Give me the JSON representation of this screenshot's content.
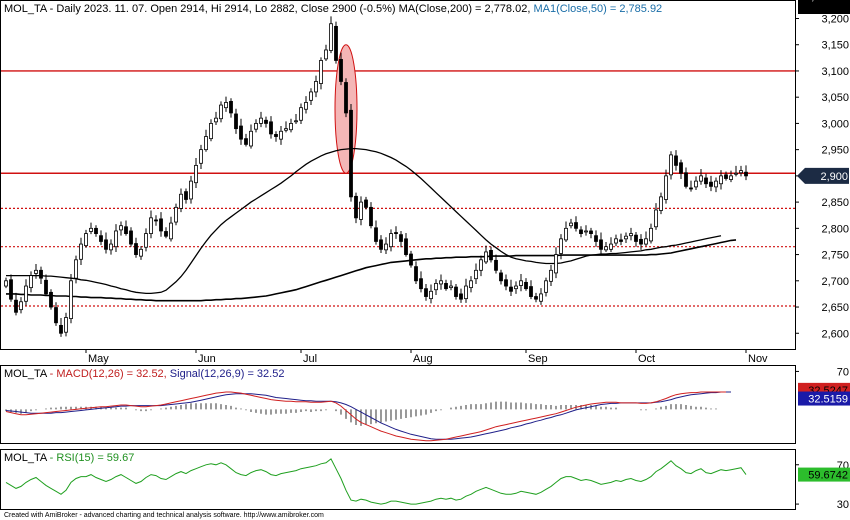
{
  "header": {
    "main": {
      "symbol": "MOL_TA",
      "info": " - Daily 2023. 11. 07. Open 2914, Hi 2914, Lo 2882, Close 2900 (-0.5%) ",
      "ma200": "MA(Close,200) = 2,778.02,",
      "ma50": " MA1(Close,50) = 2,785.92"
    },
    "macd": {
      "symbol": "MOL_TA",
      "macd": " - MACD(12,26) = 32.52,",
      "signal": " Signal(12,26,9) = 32.52"
    },
    "rsi": {
      "symbol": "MOL_TA",
      "rsi": " - RSI(15) = 59.67"
    }
  },
  "footer": "Created with AmiBroker - advanced charting and technical analysis software. http://www.amibroker.com",
  "colors": {
    "bull": "#ffffff",
    "bear": "#000000",
    "ma50": "#000000",
    "ma200": "#000000",
    "resistance": "#d01010",
    "support": "#d01010",
    "macd": "#d02020",
    "signal": "#20208a",
    "rsi": "#20a020",
    "highlight_fill": "#f4b6b6"
  },
  "chart_data": [
    {
      "type": "candlestick",
      "panel": "price",
      "ylim": [
        2570,
        3220
      ],
      "y_ticks": [
        2600,
        2650,
        2700,
        2750,
        2800,
        2850,
        2900,
        2950,
        3000,
        3050,
        3100,
        3150,
        3200
      ],
      "y_tick_labels": [
        "2,600",
        "2,650",
        "2,700",
        "2,750",
        "2,800",
        "2,850",
        "2,900",
        "2,950",
        "3,000",
        "3,050",
        "3,100",
        "3,150",
        "3,200"
      ],
      "x_labels": [
        {
          "text": "May",
          "index": 16
        },
        {
          "text": "Jun",
          "index": 38
        },
        {
          "text": "Jul",
          "index": 59
        },
        {
          "text": "Aug",
          "index": 81
        },
        {
          "text": "Sep",
          "index": 104
        },
        {
          "text": "Oct",
          "index": 126
        },
        {
          "text": "Nov",
          "index": 148
        }
      ],
      "close": [
        2700,
        2665,
        2640,
        2660,
        2690,
        2710,
        2720,
        2705,
        2675,
        2650,
        2620,
        2600,
        2630,
        2700,
        2740,
        2770,
        2790,
        2800,
        2790,
        2775,
        2760,
        2770,
        2795,
        2805,
        2790,
        2770,
        2750,
        2760,
        2790,
        2820,
        2815,
        2795,
        2785,
        2810,
        2840,
        2865,
        2855,
        2890,
        2920,
        2950,
        2975,
        3000,
        3010,
        3035,
        3040,
        3020,
        2990,
        2970,
        2960,
        2985,
        3000,
        3010,
        3000,
        2980,
        2975,
        2985,
        2990,
        3000,
        3005,
        3030,
        3040,
        3060,
        3080,
        3120,
        3140,
        3190,
        3120,
        3080,
        3020,
        2860,
        2820,
        2850,
        2840,
        2805,
        2775,
        2760,
        2770,
        2790,
        2790,
        2775,
        2750,
        2730,
        2700,
        2685,
        2670,
        2680,
        2695,
        2700,
        2685,
        2690,
        2670,
        2665,
        2690,
        2700,
        2720,
        2740,
        2755,
        2740,
        2720,
        2700,
        2690,
        2680,
        2690,
        2700,
        2685,
        2670,
        2665,
        2675,
        2700,
        2720,
        2750,
        2780,
        2800,
        2810,
        2800,
        2790,
        2795,
        2790,
        2775,
        2760,
        2765,
        2770,
        2780,
        2775,
        2785,
        2790,
        2775,
        2770,
        2780,
        2800,
        2835,
        2860,
        2900,
        2940,
        2920,
        2905,
        2880,
        2875,
        2890,
        2900,
        2885,
        2880,
        2890,
        2900,
        2895,
        2900,
        2905,
        2910,
        2900
      ],
      "ma50": [
        2710,
        2710,
        2710,
        2710,
        2710,
        2710,
        2710,
        2710,
        2709,
        2709,
        2708,
        2707,
        2706,
        2705,
        2704,
        2702,
        2701,
        2699,
        2697,
        2695,
        2693,
        2690,
        2688,
        2685,
        2683,
        2680,
        2678,
        2677,
        2676,
        2676,
        2677,
        2678,
        2682,
        2690,
        2698,
        2708,
        2720,
        2734,
        2748,
        2762,
        2775,
        2787,
        2797,
        2807,
        2815,
        2822,
        2829,
        2836,
        2843,
        2850,
        2856,
        2862,
        2868,
        2874,
        2880,
        2886,
        2893,
        2900,
        2908,
        2915,
        2922,
        2928,
        2933,
        2938,
        2942,
        2945,
        2948,
        2950,
        2951,
        2952,
        2952,
        2951,
        2950,
        2948,
        2946,
        2943,
        2939,
        2935,
        2930,
        2924,
        2918,
        2911,
        2903,
        2895,
        2886,
        2877,
        2868,
        2859,
        2850,
        2841,
        2832,
        2823,
        2814,
        2805,
        2796,
        2787,
        2778,
        2770,
        2763,
        2756,
        2750,
        2745,
        2742,
        2740,
        2738,
        2737,
        2735,
        2734,
        2733,
        2733,
        2733,
        2734,
        2736,
        2738,
        2741,
        2744,
        2747,
        2749,
        2750,
        2751,
        2751,
        2752,
        2752,
        2753,
        2754,
        2755,
        2756,
        2757,
        2759,
        2760,
        2762,
        2764,
        2765,
        2767,
        2768,
        2770,
        2772,
        2774,
        2776,
        2778,
        2780,
        2782,
        2784,
        2786
      ],
      "ma200": [
        2675,
        2675,
        2675,
        2674,
        2674,
        2673,
        2673,
        2673,
        2672,
        2672,
        2671,
        2671,
        2671,
        2670,
        2670,
        2669,
        2669,
        2668,
        2668,
        2668,
        2667,
        2667,
        2666,
        2666,
        2665,
        2665,
        2664,
        2664,
        2663,
        2663,
        2662,
        2662,
        2662,
        2662,
        2662,
        2662,
        2662,
        2662,
        2662,
        2662,
        2663,
        2663,
        2664,
        2664,
        2665,
        2665,
        2666,
        2666,
        2667,
        2668,
        2669,
        2670,
        2671,
        2673,
        2675,
        2677,
        2679,
        2681,
        2683,
        2686,
        2689,
        2692,
        2695,
        2698,
        2701,
        2704,
        2707,
        2710,
        2713,
        2716,
        2719,
        2722,
        2725,
        2727,
        2729,
        2731,
        2733,
        2735,
        2736,
        2737,
        2738,
        2739,
        2740,
        2741,
        2742,
        2742,
        2743,
        2743,
        2744,
        2744,
        2745,
        2745,
        2745,
        2746,
        2746,
        2746,
        2746,
        2747,
        2747,
        2747,
        2747,
        2747,
        2748,
        2748,
        2748,
        2748,
        2748,
        2748,
        2748,
        2748,
        2748,
        2749,
        2749,
        2749,
        2749,
        2749,
        2749,
        2749,
        2749,
        2749,
        2749,
        2749,
        2749,
        2749,
        2749,
        2749,
        2749,
        2749,
        2749,
        2750,
        2750,
        2751,
        2752,
        2753,
        2755,
        2757,
        2759,
        2761,
        2763,
        2765,
        2767,
        2769,
        2771,
        2773,
        2775,
        2777,
        2778
      ],
      "resistance_lines": [
        3100,
        2905
      ],
      "support_lines": [
        2838,
        2765,
        2652
      ],
      "highlight": {
        "start_index": 66,
        "end_index": 70,
        "from": 3150,
        "to": 2905
      },
      "last_price_label": "2,900",
      "ma50_label": "2,785.92",
      "ma200_label": "2,778.02"
    },
    {
      "type": "line",
      "panel": "macd",
      "ylim": [
        -62,
        80
      ],
      "y_ticks": [
        70
      ],
      "y_tick_labels": [
        "70"
      ],
      "series": [
        {
          "name": "MACD(12,26)",
          "values": [
            -4,
            -6,
            -8,
            -10,
            -10,
            -9,
            -8,
            -7,
            -6,
            -5,
            -4,
            -3,
            -2,
            -1,
            0,
            1,
            2,
            3,
            4,
            5,
            5,
            6,
            7,
            8,
            8,
            7,
            6,
            5,
            5,
            6,
            7,
            8,
            10,
            12,
            14,
            16,
            18,
            20,
            22,
            24,
            26,
            28,
            30,
            31,
            32,
            32,
            31,
            30,
            28,
            26,
            24,
            22,
            20,
            18,
            17,
            16,
            15,
            15,
            14,
            14,
            14,
            13,
            13,
            13,
            14,
            15,
            12,
            6,
            -2,
            -10,
            -18,
            -24,
            -28,
            -32,
            -36,
            -40,
            -43,
            -46,
            -49,
            -51,
            -53,
            -55,
            -56,
            -57,
            -58,
            -58,
            -57,
            -56,
            -55,
            -53,
            -51,
            -49,
            -47,
            -45,
            -43,
            -41,
            -38,
            -35,
            -32,
            -30,
            -28,
            -26,
            -24,
            -22,
            -20,
            -18,
            -16,
            -14,
            -12,
            -10,
            -8,
            -5,
            -2,
            1,
            4,
            6,
            8,
            10,
            11,
            12,
            13,
            13,
            13,
            12,
            12,
            12,
            12,
            11,
            11,
            12,
            14,
            17,
            20,
            24,
            27,
            29,
            30,
            31,
            31,
            32,
            32,
            32,
            32,
            32,
            32
          ]
        },
        {
          "name": "Signal(12,26,9)",
          "values": [
            -2,
            -3,
            -4,
            -5,
            -6,
            -7,
            -7,
            -7,
            -7,
            -7,
            -6,
            -6,
            -5,
            -4,
            -3,
            -2,
            -1,
            0,
            1,
            2,
            3,
            4,
            5,
            6,
            6,
            7,
            7,
            7,
            7,
            7,
            7,
            7,
            8,
            9,
            10,
            11,
            12,
            13,
            15,
            17,
            19,
            21,
            23,
            25,
            27,
            28,
            29,
            29,
            29,
            29,
            28,
            27,
            26,
            24,
            22,
            21,
            20,
            19,
            18,
            17,
            16,
            16,
            15,
            15,
            15,
            15,
            14,
            12,
            9,
            5,
            0,
            -5,
            -10,
            -15,
            -20,
            -25,
            -29,
            -33,
            -37,
            -40,
            -43,
            -46,
            -48,
            -50,
            -52,
            -54,
            -55,
            -55,
            -55,
            -55,
            -54,
            -53,
            -52,
            -51,
            -49,
            -47,
            -45,
            -43,
            -41,
            -39,
            -37,
            -34,
            -32,
            -30,
            -27,
            -25,
            -22,
            -20,
            -17,
            -15,
            -12,
            -10,
            -7,
            -4,
            -1,
            1,
            3,
            5,
            7,
            9,
            10,
            11,
            11,
            12,
            12,
            12,
            12,
            12,
            12,
            12,
            13,
            14,
            16,
            18,
            21,
            23,
            25,
            27,
            28,
            29,
            30,
            31,
            31,
            32,
            32,
            32
          ]
        }
      ],
      "macd_label": "32.5247",
      "signal_label": "32.5159"
    },
    {
      "type": "line",
      "panel": "rsi",
      "ylim": [
        25,
        85
      ],
      "y_ticks": [
        70,
        30
      ],
      "y_tick_labels": [
        "70",
        "30"
      ],
      "series": [
        {
          "name": "RSI(15)",
          "values": [
            52,
            49,
            46,
            48,
            52,
            55,
            57,
            53,
            49,
            46,
            43,
            40,
            44,
            52,
            56,
            58,
            58,
            60,
            57,
            55,
            53,
            55,
            58,
            60,
            57,
            54,
            51,
            53,
            57,
            60,
            59,
            56,
            55,
            58,
            61,
            63,
            61,
            64,
            66,
            68,
            70,
            71,
            70,
            72,
            70,
            66,
            62,
            60,
            59,
            62,
            64,
            65,
            63,
            60,
            59,
            61,
            62,
            63,
            64,
            66,
            67,
            68,
            69,
            71,
            72,
            76,
            66,
            56,
            44,
            34,
            33,
            35,
            34,
            32,
            31,
            30,
            31,
            33,
            33,
            32,
            31,
            30,
            30,
            31,
            32,
            33,
            35,
            36,
            35,
            36,
            34,
            35,
            38,
            40,
            43,
            45,
            47,
            45,
            43,
            41,
            40,
            40,
            41,
            43,
            42,
            41,
            40,
            42,
            45,
            48,
            52,
            56,
            58,
            58,
            56,
            54,
            55,
            54,
            52,
            50,
            51,
            52,
            54,
            53,
            55,
            56,
            54,
            53,
            55,
            58,
            63,
            66,
            70,
            74,
            69,
            66,
            62,
            61,
            64,
            66,
            62,
            61,
            63,
            65,
            64,
            65,
            66,
            67,
            60
          ]
        }
      ],
      "rsi_label": "59.6742"
    }
  ]
}
